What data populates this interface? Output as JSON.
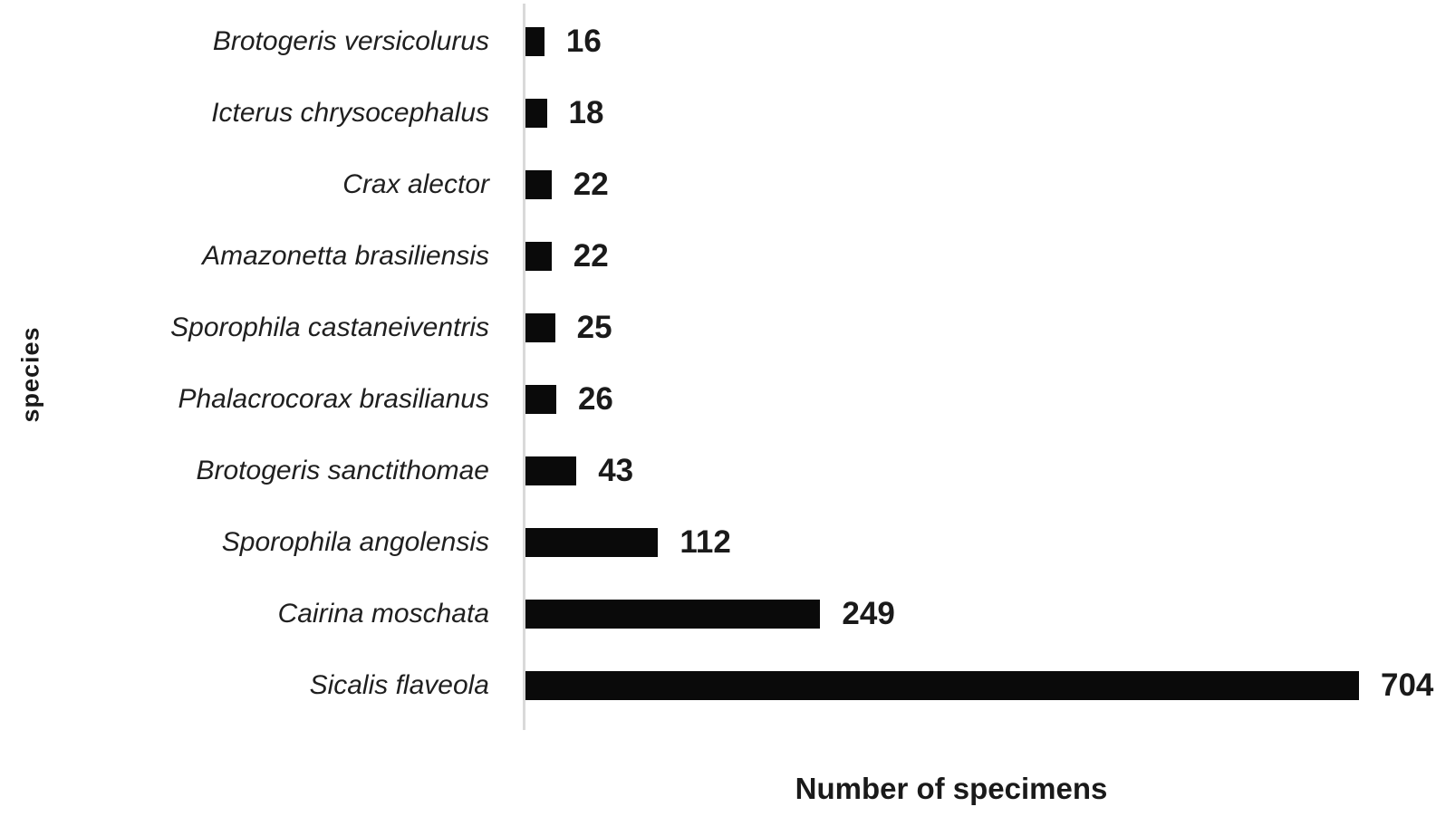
{
  "chart_data": {
    "type": "bar",
    "orientation": "horizontal",
    "title": "",
    "xlabel": "Number of specimens",
    "ylabel": "species",
    "categories": [
      "Brotogeris versicolurus",
      "Icterus chrysocephalus",
      "Crax alector",
      "Amazonetta brasiliensis",
      "Sporophila castaneiventris",
      "Phalacrocorax brasilianus",
      "Brotogeris sanctithomae",
      "Sporophila angolensis",
      "Cairina moschata",
      "Sicalis flaveola"
    ],
    "values": [
      16,
      18,
      22,
      22,
      25,
      26,
      43,
      112,
      249,
      704
    ],
    "xlim": [
      0,
      770
    ],
    "grid": false,
    "legend": false,
    "data_labels": true,
    "bar_color": "#0a0a0a",
    "axis_line_color": "#d9d9d9",
    "text_color": "#1a1a1a"
  }
}
